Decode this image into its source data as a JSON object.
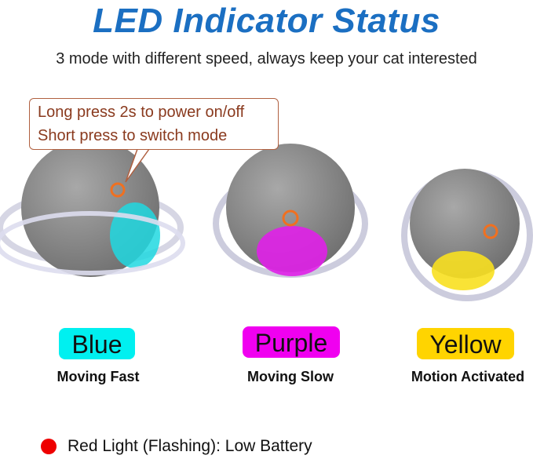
{
  "title": "LED Indicator Status",
  "subtitle": "3 mode with different speed, always keep your cat interested",
  "callout": {
    "line1": "Long press 2s to power on/off",
    "line2": "Short press to switch mode"
  },
  "modes": [
    {
      "color_name": "Blue",
      "description": "Moving Fast",
      "color": "#00f0f0"
    },
    {
      "color_name": "Purple",
      "description": "Moving Slow",
      "color": "#f000f0"
    },
    {
      "color_name": "Yellow",
      "description": "Motion Activated",
      "color": "#ffd400"
    }
  ],
  "battery": {
    "text": "Red Light (Flashing): Low Battery",
    "color": "#ee0000"
  },
  "colors": {
    "title": "#1b6fc2",
    "ball": "#8c8c8c",
    "power_icon": "#f07020"
  }
}
